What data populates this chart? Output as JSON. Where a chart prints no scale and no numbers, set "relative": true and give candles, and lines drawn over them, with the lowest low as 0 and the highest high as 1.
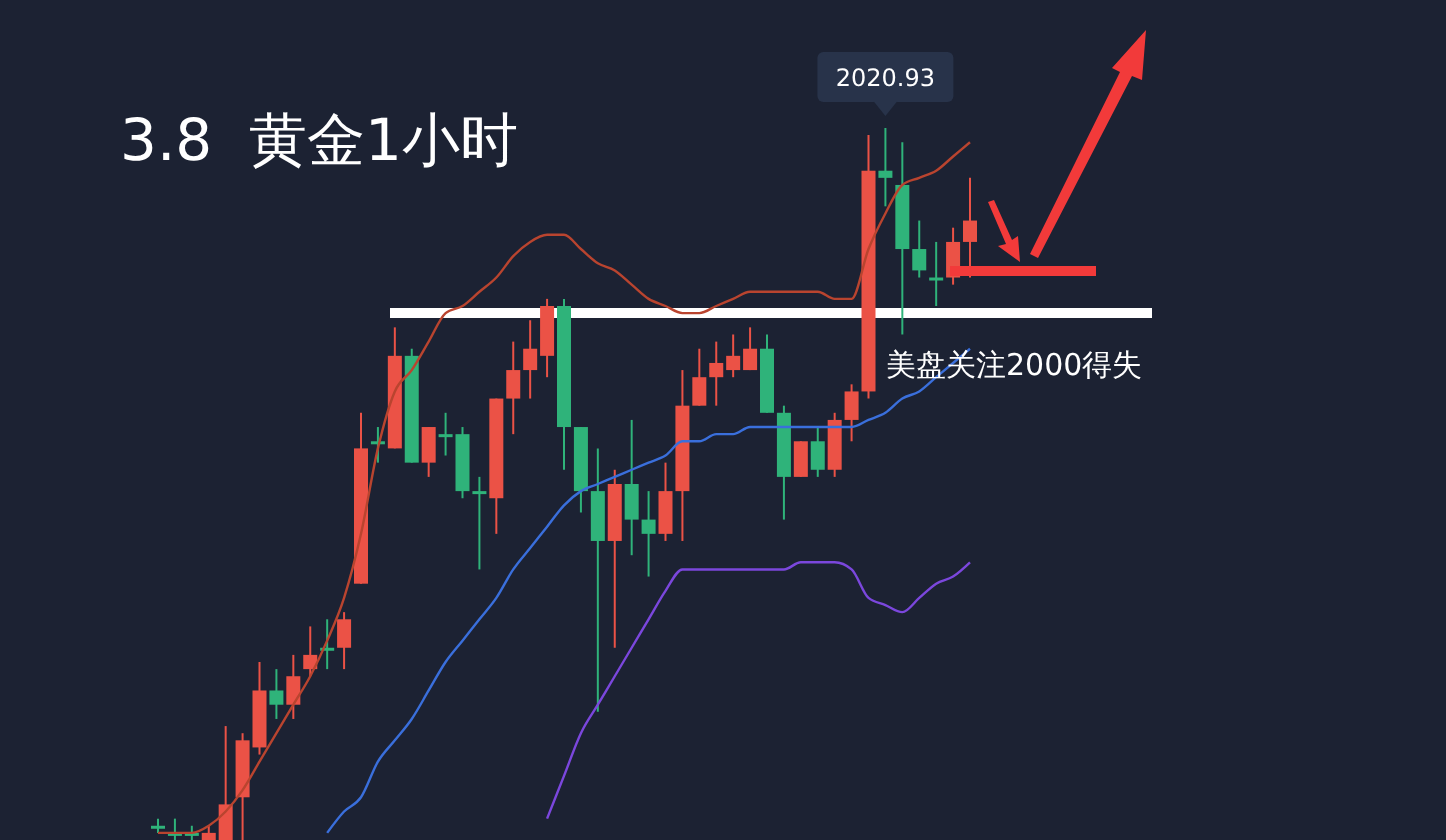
{
  "chart_data": {
    "type": "candlestick",
    "title": "3.8  黄金1小时",
    "relative": true,
    "categories": [
      null,
      null,
      null,
      null,
      null,
      null,
      null,
      null,
      null,
      null,
      null,
      null,
      null,
      null,
      null,
      null,
      null,
      null,
      null,
      null,
      null,
      null,
      null,
      null,
      null,
      null,
      null,
      null,
      null,
      null,
      null,
      null,
      null,
      null,
      null,
      null,
      null,
      null,
      null,
      null,
      null,
      null,
      null,
      null,
      null,
      null,
      null,
      null,
      null
    ],
    "ohlc": [
      [
        0.02,
        0.03,
        0.01,
        0.02
      ],
      [
        0.01,
        0.03,
        0,
        0.01
      ],
      [
        0.01,
        0.02,
        0,
        0.01
      ],
      [
        0,
        0.02,
        0,
        0.01
      ],
      [
        0,
        0.16,
        0,
        0.05
      ],
      [
        0.06,
        0.15,
        0,
        0.14
      ],
      [
        0.13,
        0.25,
        0.12,
        0.21
      ],
      [
        0.21,
        0.24,
        0.17,
        0.19
      ],
      [
        0.19,
        0.26,
        0.17,
        0.23
      ],
      [
        0.24,
        0.3,
        0.23,
        0.26
      ],
      [
        0.27,
        0.31,
        0.24,
        0.27
      ],
      [
        0.27,
        0.32,
        0.24,
        0.31
      ],
      [
        0.36,
        0.6,
        0.36,
        0.55
      ],
      [
        0.56,
        0.58,
        0.53,
        0.56
      ],
      [
        0.55,
        0.72,
        0.55,
        0.68
      ],
      [
        0.68,
        0.69,
        0.53,
        0.53
      ],
      [
        0.53,
        0.58,
        0.51,
        0.58
      ],
      [
        0.57,
        0.6,
        0.54,
        0.57
      ],
      [
        0.57,
        0.58,
        0.48,
        0.49
      ],
      [
        0.49,
        0.51,
        0.38,
        0.49
      ],
      [
        0.48,
        0.62,
        0.43,
        0.62
      ],
      [
        0.62,
        0.7,
        0.57,
        0.66
      ],
      [
        0.66,
        0.73,
        0.62,
        0.69
      ],
      [
        0.68,
        0.76,
        0.65,
        0.75
      ],
      [
        0.75,
        0.76,
        0.52,
        0.58
      ],
      [
        0.58,
        0.58,
        0.46,
        0.49
      ],
      [
        0.49,
        0.55,
        0.18,
        0.42
      ],
      [
        0.42,
        0.52,
        0.27,
        0.5
      ],
      [
        0.5,
        0.59,
        0.4,
        0.45
      ],
      [
        0.45,
        0.49,
        0.37,
        0.43
      ],
      [
        0.43,
        0.53,
        0.42,
        0.49
      ],
      [
        0.49,
        0.66,
        0.42,
        0.61
      ],
      [
        0.61,
        0.69,
        0.61,
        0.65
      ],
      [
        0.65,
        0.7,
        0.61,
        0.67
      ],
      [
        0.66,
        0.71,
        0.65,
        0.68
      ],
      [
        0.66,
        0.72,
        0.66,
        0.69
      ],
      [
        0.69,
        0.71,
        0.6,
        0.6
      ],
      [
        0.6,
        0.61,
        0.45,
        0.51
      ],
      [
        0.51,
        0.56,
        0.51,
        0.56
      ],
      [
        0.56,
        0.58,
        0.51,
        0.52
      ],
      [
        0.52,
        0.6,
        0.51,
        0.59
      ],
      [
        0.59,
        0.64,
        0.56,
        0.63
      ],
      [
        0.63,
        0.99,
        0.62,
        0.94
      ],
      [
        0.94,
        1,
        0.89,
        0.93
      ],
      [
        0.92,
        0.98,
        0.71,
        0.83
      ],
      [
        0.83,
        0.87,
        0.79,
        0.8
      ],
      [
        0.79,
        0.84,
        0.75,
        0.79
      ],
      [
        0.79,
        0.86,
        0.78,
        0.84
      ],
      [
        0.84,
        0.93,
        0.79,
        0.87
      ]
    ],
    "colors": [
      "#2fb37a",
      "#2fb37a",
      "#2fb37a",
      "#eb5246",
      "#eb5246",
      "#eb5246",
      "#eb5246",
      "#2fb37a",
      "#eb5246",
      "#eb5246",
      "#2fb37a",
      "#eb5246",
      "#eb5246",
      "#2fb37a",
      "#eb5246",
      "#2fb37a",
      "#eb5246",
      "#2fb37a",
      "#2fb37a",
      "#2fb37a",
      "#eb5246",
      "#eb5246",
      "#eb5246",
      "#eb5246",
      "#2fb37a",
      "#2fb37a",
      "#2fb37a",
      "#eb5246",
      "#2fb37a",
      "#2fb37a",
      "#eb5246",
      "#eb5246",
      "#eb5246",
      "#eb5246",
      "#eb5246",
      "#eb5246",
      "#2fb37a",
      "#2fb37a",
      "#eb5246",
      "#2fb37a",
      "#eb5246",
      "#eb5246",
      "#eb5246",
      "#2fb37a",
      "#2fb37a",
      "#2fb37a",
      "#2fb37a",
      "#eb5246",
      "#eb5246"
    ],
    "series": [
      {
        "type": "line",
        "color": "#b9442f",
        "values": [
          0.01,
          0.01,
          0.01,
          0.02,
          0.04,
          0.07,
          0.11,
          0.15,
          0.19,
          0.23,
          0.28,
          0.34,
          0.43,
          0.55,
          0.63,
          0.66,
          0.7,
          0.74,
          0.75,
          0.77,
          0.79,
          0.82,
          0.84,
          0.85,
          0.85,
          0.83,
          0.81,
          0.8,
          0.78,
          0.76,
          0.75,
          0.74,
          0.74,
          0.75,
          0.76,
          0.77,
          0.77,
          0.77,
          0.77,
          0.77,
          0.76,
          0.76,
          0.83,
          0.88,
          0.92,
          0.93,
          0.94,
          0.96,
          0.98
        ]
      },
      {
        "type": "line",
        "color": "#3a6fdc",
        "values": [
          null,
          null,
          null,
          null,
          null,
          null,
          null,
          null,
          null,
          null,
          0.01,
          0.04,
          0.06,
          0.11,
          0.14,
          0.17,
          0.21,
          0.25,
          0.28,
          0.31,
          0.34,
          0.38,
          0.41,
          0.44,
          0.47,
          0.49,
          0.5,
          0.51,
          0.52,
          0.53,
          0.54,
          0.56,
          0.56,
          0.57,
          0.57,
          0.58,
          0.58,
          0.58,
          0.58,
          0.58,
          0.58,
          0.58,
          0.59,
          0.6,
          0.62,
          0.63,
          0.65,
          0.67,
          0.69
        ]
      },
      {
        "type": "line",
        "color": "#7b47dd",
        "values": [
          null,
          null,
          null,
          null,
          null,
          null,
          null,
          null,
          null,
          null,
          null,
          null,
          null,
          null,
          null,
          null,
          null,
          null,
          null,
          null,
          null,
          null,
          null,
          0.03,
          0.09,
          0.15,
          0.19,
          0.23,
          0.27,
          0.31,
          0.35,
          0.38,
          0.38,
          0.38,
          0.38,
          0.38,
          0.38,
          0.38,
          0.39,
          0.39,
          0.39,
          0.38,
          0.34,
          0.33,
          0.32,
          0.34,
          0.36,
          0.37,
          0.39
        ]
      }
    ],
    "ref_lines": [
      {
        "axis": "y",
        "value": 0.74,
        "label": "美盘关注2000得失",
        "color": "#ffffff"
      }
    ],
    "annotations": [
      {
        "text": "2020.93",
        "y": 1
      }
    ]
  }
}
